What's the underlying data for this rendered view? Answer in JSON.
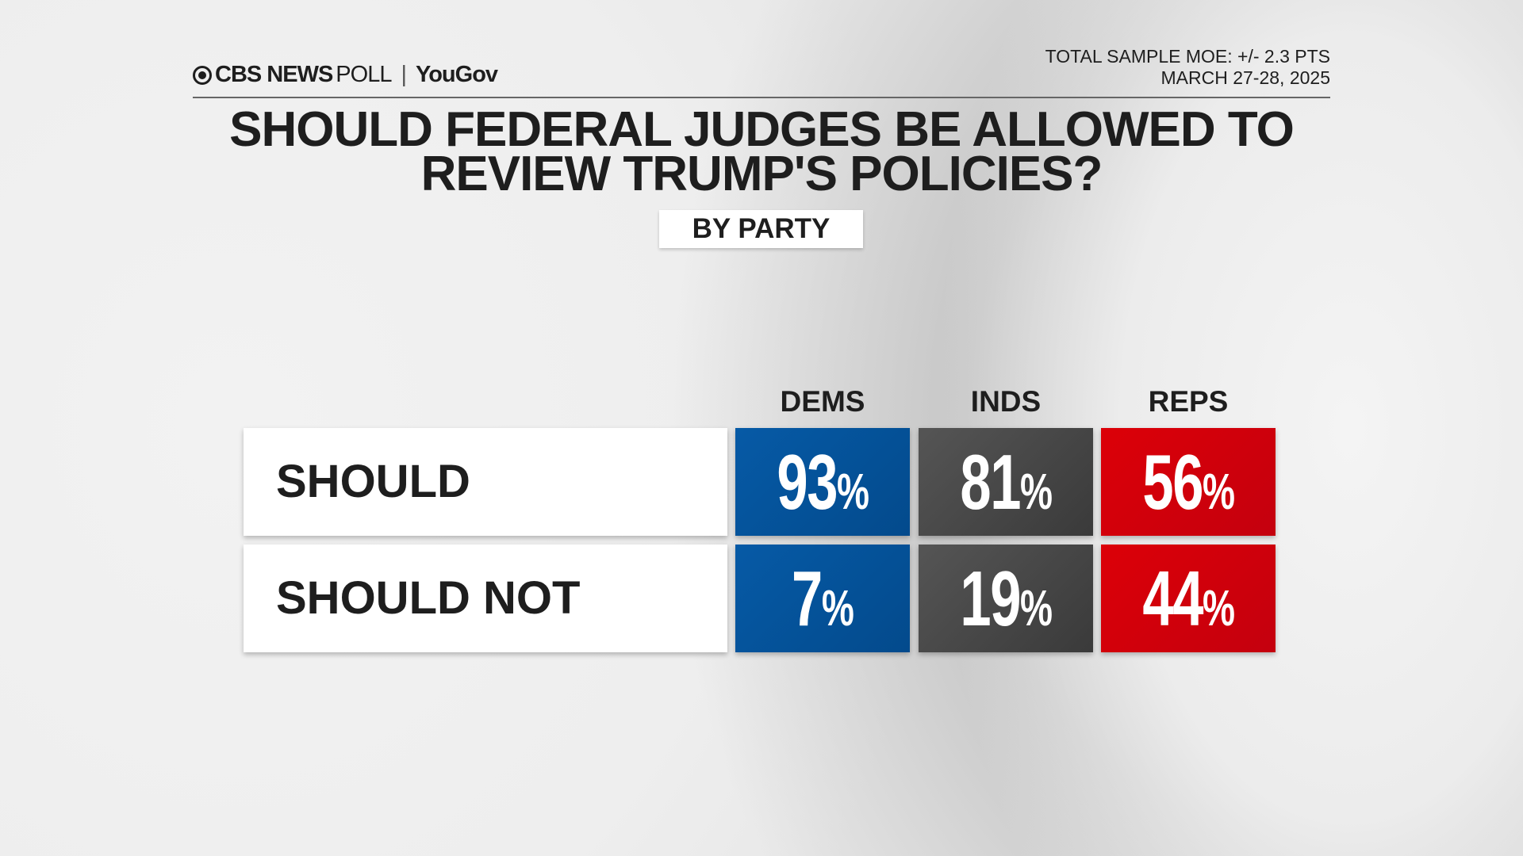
{
  "header": {
    "logo_brand": "CBS NEWS",
    "logo_poll": "POLL",
    "logo_partner": "YouGov",
    "moe": "TOTAL SAMPLE MOE: +/- 2.3 PTS",
    "date": "MARCH 27-28, 2025"
  },
  "chart_data": {
    "type": "table",
    "title_line1": "SHOULD FEDERAL JUDGES BE ALLOWED TO",
    "title_line2": "REVIEW TRUMP'S POLICIES?",
    "subtitle": "BY PARTY",
    "columns": [
      "DEMS",
      "INDS",
      "REPS"
    ],
    "rows": [
      {
        "label": "SHOULD",
        "values": [
          93,
          81,
          56
        ]
      },
      {
        "label": "SHOULD NOT",
        "values": [
          7,
          19,
          44
        ]
      }
    ],
    "unit": "%",
    "colors": {
      "DEMS": "#065aa6",
      "INDS": "#484848",
      "REPS": "#d50010"
    }
  }
}
